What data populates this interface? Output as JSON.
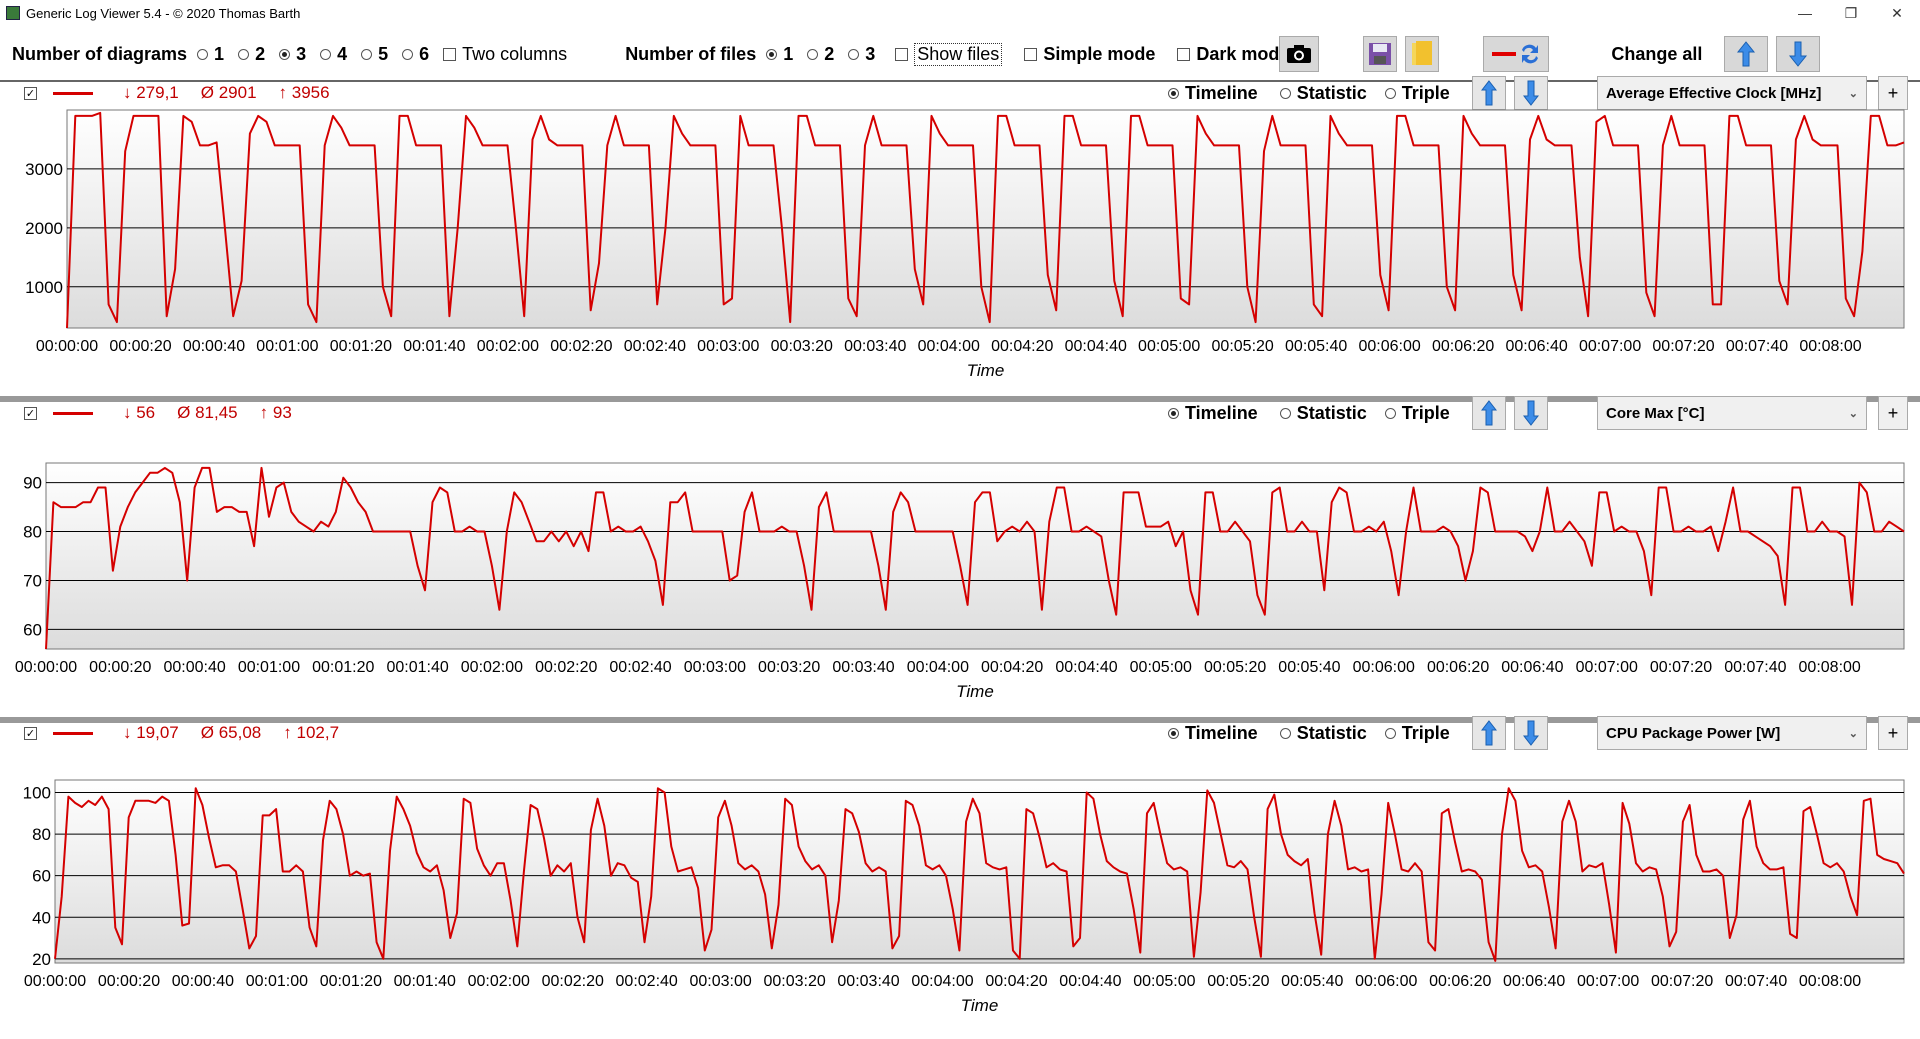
{
  "window": {
    "title": "Generic Log Viewer 5.4 - © 2020 Thomas Barth",
    "min": "—",
    "max": "❐",
    "close": "✕"
  },
  "toolbar": {
    "diagrams_label": "Number of diagrams",
    "diagram_options": [
      "1",
      "2",
      "3",
      "4",
      "5",
      "6"
    ],
    "diagrams_selected": "3",
    "two_columns": "Two columns",
    "files_label": "Number of files",
    "file_options": [
      "1",
      "2",
      "3"
    ],
    "files_selected": "1",
    "show_files": "Show files",
    "simple_mode": "Simple mode",
    "dark_mode": "Dark mod",
    "change_all": "Change all",
    "icons": {
      "camera": "camera-icon",
      "save": "save-icon",
      "folder": "folder-icon",
      "swap": "swap-icon",
      "up": "arrow-up-icon",
      "down": "arrow-down-icon"
    }
  },
  "view_options": {
    "timeline": "Timeline",
    "statistic": "Statistic",
    "triple": "Triple"
  },
  "colors": {
    "series": "#d40000",
    "stat": "#c00000",
    "plot_top": "#ffffff",
    "plot_bottom": "#dcdcdc"
  },
  "panels": [
    {
      "min": "↓ 279,1",
      "avg": "Ø 2901",
      "max": "↑ 3956",
      "sensor": "Average Effective Clock [MHz]",
      "chart_data": {
        "type": "line",
        "xlabel": "Time",
        "x_ticks": [
          "00:00:00",
          "00:00:20",
          "00:00:40",
          "00:01:00",
          "00:01:20",
          "00:01:40",
          "00:02:00",
          "00:02:20",
          "00:02:40",
          "00:03:00",
          "00:03:20",
          "00:03:40",
          "00:04:00",
          "00:04:20",
          "00:04:40",
          "00:05:00",
          "00:05:20",
          "00:05:40",
          "00:06:00",
          "00:06:20",
          "00:06:40",
          "00:07:00",
          "00:07:20",
          "00:07:40",
          "00:08:00"
        ],
        "xlim_seconds": [
          0,
          500
        ],
        "ylim": [
          300,
          4000
        ],
        "y_ticks": [
          1000,
          2000,
          3000
        ],
        "grid": true,
        "series": [
          {
            "values": [
              300,
              3900,
              3900,
              3900,
              3950,
              700,
              400,
              3300,
              3900,
              3900,
              3900,
              3900,
              500,
              1300,
              3900,
              3800,
              3400,
              3400,
              3450,
              2000,
              500,
              1100,
              3600,
              3900,
              3800,
              3400,
              3400,
              3400,
              3400,
              700,
              400,
              3400,
              3900,
              3700,
              3400,
              3400,
              3400,
              3400,
              1000,
              500,
              3900,
              3900,
              3400,
              3400,
              3400,
              3400,
              500,
              2000,
              3900,
              3700,
              3400,
              3400,
              3400,
              3400,
              2000,
              500,
              3500,
              3900,
              3500,
              3400,
              3400,
              3400,
              3400,
              600,
              1400,
              3400,
              3900,
              3400,
              3400,
              3400,
              3400,
              700,
              2000,
              3900,
              3600,
              3400,
              3400,
              3400,
              3400,
              700,
              800,
              3900,
              3400,
              3400,
              3400,
              3400,
              2000,
              400,
              3900,
              3900,
              3400,
              3400,
              3400,
              3400,
              800,
              500,
              3400,
              3900,
              3400,
              3400,
              3400,
              3400,
              1300,
              700,
              3900,
              3600,
              3400,
              3400,
              3400,
              3400,
              1000,
              400,
              3900,
              3900,
              3400,
              3400,
              3400,
              3400,
              1200,
              600,
              3900,
              3900,
              3400,
              3400,
              3400,
              3400,
              1100,
              500,
              3900,
              3900,
              3400,
              3400,
              3400,
              3400,
              800,
              700,
              3900,
              3600,
              3400,
              3400,
              3400,
              3400,
              1000,
              400,
              3300,
              3900,
              3400,
              3400,
              3400,
              3400,
              700,
              500,
              3900,
              3600,
              3400,
              3400,
              3400,
              3400,
              1200,
              600,
              3900,
              3900,
              3400,
              3400,
              3400,
              3400,
              1000,
              600,
              3900,
              3600,
              3400,
              3400,
              3400,
              3400,
              1200,
              600,
              3500,
              3900,
              3500,
              3400,
              3400,
              3400,
              1500,
              500,
              3800,
              3900,
              3400,
              3400,
              3400,
              3400,
              900,
              500,
              3400,
              3900,
              3400,
              3400,
              3400,
              3400,
              700,
              700,
              3900,
              3900,
              3400,
              3400,
              3400,
              3400,
              1100,
              700,
              3500,
              3900,
              3500,
              3400,
              3400,
              3400,
              800,
              500,
              1600,
              3900,
              3900,
              3400,
              3400,
              3450
            ]
          }
        ]
      }
    },
    {
      "min": "↓ 56",
      "avg": "Ø 81,45",
      "max": "↑ 93",
      "sensor": "Core Max [°C]",
      "chart_data": {
        "type": "line",
        "xlabel": "Time",
        "x_ticks": [
          "00:00:00",
          "00:00:20",
          "00:00:40",
          "00:01:00",
          "00:01:20",
          "00:01:40",
          "00:02:00",
          "00:02:20",
          "00:02:40",
          "00:03:00",
          "00:03:20",
          "00:03:40",
          "00:04:00",
          "00:04:20",
          "00:04:40",
          "00:05:00",
          "00:05:20",
          "00:05:40",
          "00:06:00",
          "00:06:20",
          "00:06:40",
          "00:07:00",
          "00:07:20",
          "00:07:40",
          "00:08:00"
        ],
        "xlim_seconds": [
          0,
          500
        ],
        "ylim": [
          56,
          94
        ],
        "y_ticks": [
          60,
          70,
          80,
          90
        ],
        "grid": true,
        "series": [
          {
            "values": [
              56,
              86,
              85,
              85,
              85,
              86,
              86,
              89,
              89,
              72,
              81,
              85,
              88,
              90,
              92,
              92,
              93,
              92,
              86,
              70,
              89,
              93,
              93,
              84,
              85,
              85,
              84,
              84,
              77,
              93,
              83,
              89,
              90,
              84,
              82,
              81,
              80,
              82,
              81,
              84,
              91,
              89,
              86,
              84,
              80,
              80,
              80,
              80,
              80,
              80,
              73,
              68,
              86,
              89,
              88,
              80,
              80,
              81,
              80,
              80,
              73,
              64,
              80,
              88,
              86,
              82,
              78,
              78,
              80,
              78,
              80,
              77,
              80,
              76,
              88,
              88,
              80,
              81,
              80,
              80,
              81,
              78,
              74,
              65,
              86,
              86,
              88,
              80,
              80,
              80,
              80,
              80,
              70,
              71,
              84,
              88,
              80,
              80,
              80,
              81,
              80,
              80,
              73,
              64,
              85,
              88,
              80,
              80,
              80,
              80,
              80,
              80,
              73,
              64,
              84,
              88,
              86,
              80,
              80,
              80,
              80,
              80,
              80,
              73,
              65,
              86,
              88,
              88,
              78,
              80,
              81,
              80,
              82,
              80,
              64,
              82,
              89,
              89,
              80,
              80,
              81,
              80,
              79,
              70,
              63,
              88,
              88,
              88,
              81,
              81,
              81,
              82,
              77,
              80,
              68,
              63,
              88,
              88,
              80,
              80,
              82,
              80,
              78,
              67,
              63,
              88,
              89,
              80,
              80,
              82,
              80,
              80,
              68,
              86,
              89,
              88,
              80,
              80,
              81,
              80,
              82,
              76,
              67,
              80,
              89,
              80,
              80,
              80,
              81,
              80,
              77,
              70,
              76,
              89,
              88,
              80,
              80,
              80,
              80,
              79,
              76,
              80,
              89,
              80,
              80,
              82,
              80,
              78,
              73,
              88,
              88,
              80,
              81,
              80,
              80,
              76,
              67,
              89,
              89,
              80,
              80,
              81,
              80,
              80,
              81,
              76,
              82,
              89,
              80,
              80,
              79,
              78,
              77,
              75,
              65,
              89,
              89,
              80,
              80,
              82,
              80,
              80,
              79,
              65,
              90,
              88,
              80,
              80,
              82,
              81,
              80
            ]
          }
        ]
      }
    },
    {
      "min": "↓ 19,07",
      "avg": "Ø 65,08",
      "max": "↑ 102,7",
      "sensor": "CPU Package Power [W]",
      "chart_data": {
        "type": "line",
        "xlabel": "Time",
        "x_ticks": [
          "00:00:00",
          "00:00:20",
          "00:00:40",
          "00:01:00",
          "00:01:20",
          "00:01:40",
          "00:02:00",
          "00:02:20",
          "00:02:40",
          "00:03:00",
          "00:03:20",
          "00:03:40",
          "00:04:00",
          "00:04:20",
          "00:04:40",
          "00:05:00",
          "00:05:20",
          "00:05:40",
          "00:06:00",
          "00:06:20",
          "00:06:40",
          "00:07:00",
          "00:07:20",
          "00:07:40",
          "00:08:00"
        ],
        "xlim_seconds": [
          0,
          500
        ],
        "ylim": [
          18,
          106
        ],
        "y_ticks": [
          20,
          40,
          60,
          80,
          100
        ],
        "grid": true,
        "series": [
          {
            "values": [
              20,
              50,
              98,
              95,
              93,
              96,
              94,
              98,
              92,
              35,
              27,
              88,
              96,
              96,
              96,
              95,
              98,
              96,
              70,
              36,
              37,
              102,
              94,
              78,
              64,
              65,
              65,
              62,
              44,
              25,
              31,
              89,
              89,
              92,
              62,
              62,
              65,
              62,
              35,
              26,
              77,
              96,
              92,
              80,
              60,
              62,
              60,
              61,
              28,
              20,
              72,
              98,
              92,
              84,
              71,
              64,
              62,
              65,
              53,
              30,
              42,
              97,
              95,
              73,
              65,
              60,
              66,
              66,
              48,
              26,
              62,
              94,
              92,
              78,
              60,
              65,
              62,
              66,
              40,
              28,
              82,
              97,
              84,
              60,
              66,
              65,
              59,
              57,
              28,
              50,
              102,
              100,
              74,
              62,
              63,
              64,
              54,
              24,
              34,
              88,
              96,
              84,
              66,
              63,
              65,
              62,
              51,
              25,
              46,
              97,
              94,
              74,
              67,
              63,
              65,
              60,
              28,
              48,
              92,
              90,
              81,
              66,
              62,
              64,
              62,
              25,
              31,
              96,
              94,
              84,
              65,
              63,
              65,
              60,
              44,
              24,
              86,
              97,
              90,
              66,
              64,
              63,
              64,
              24,
              20,
              92,
              90,
              78,
              64,
              66,
              63,
              62,
              26,
              30,
              100,
              97,
              80,
              67,
              64,
              62,
              61,
              44,
              23,
              90,
              95,
              80,
              66,
              63,
              64,
              62,
              21,
              52,
              101,
              95,
              80,
              65,
              64,
              67,
              63,
              40,
              21,
              92,
              99,
              80,
              70,
              67,
              65,
              68,
              42,
              22,
              80,
              96,
              84,
              63,
              64,
              62,
              63,
              20,
              51,
              95,
              80,
              63,
              62,
              66,
              62,
              28,
              24,
              90,
              92,
              76,
              62,
              63,
              62,
              58,
              28,
              19,
              80,
              102,
              96,
              72,
              64,
              65,
              62,
              45,
              25,
              86,
              96,
              86,
              62,
              65,
              64,
              66,
              46,
              23,
              95,
              85,
              66,
              62,
              64,
              63,
              50,
              26,
              33,
              86,
              94,
              70,
              62,
              62,
              63,
              60,
              30,
              41,
              87,
              96,
              74,
              66,
              63,
              63,
              64,
              32,
              30,
              91,
              93,
              80,
              66,
              64,
              66,
              62,
              50,
              41,
              96,
              97,
              70,
              68,
              67,
              66,
              61
            ]
          }
        ]
      }
    }
  ]
}
